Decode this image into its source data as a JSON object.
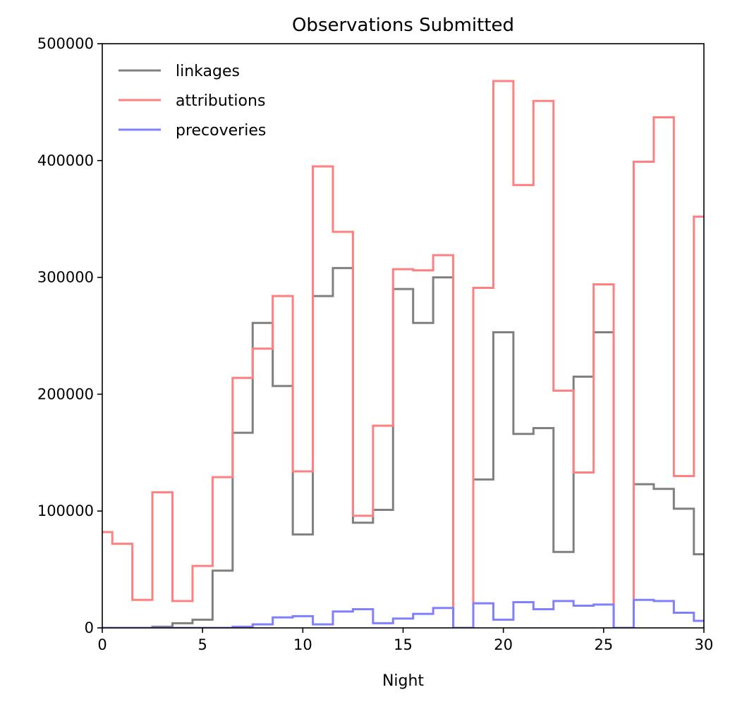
{
  "chart_data": {
    "type": "line",
    "step": "mid",
    "title": "Observations Submitted",
    "xlabel": "Night",
    "ylabel": "",
    "xlim": [
      0,
      30
    ],
    "ylim": [
      0,
      500000
    ],
    "x_ticks": [
      0,
      5,
      10,
      15,
      20,
      25,
      30
    ],
    "y_ticks": [
      0,
      100000,
      200000,
      300000,
      400000,
      500000
    ],
    "x_tick_labels": [
      "0",
      "5",
      "10",
      "15",
      "20",
      "25",
      "30"
    ],
    "y_tick_labels": [
      "0",
      "100000",
      "200000",
      "300000",
      "400000",
      "500000"
    ],
    "grid": false,
    "legend_position": "top-left",
    "x": [
      0,
      1,
      2,
      3,
      4,
      5,
      6,
      7,
      8,
      9,
      10,
      11,
      12,
      13,
      14,
      15,
      16,
      17,
      18,
      19,
      20,
      21,
      22,
      23,
      24,
      25,
      26,
      27,
      28,
      29,
      30
    ],
    "series": [
      {
        "name": "linkages",
        "color": "#808080",
        "values": [
          0,
          0,
          0,
          1000,
          4000,
          7000,
          49000,
          167000,
          261000,
          207000,
          80000,
          284000,
          308000,
          90000,
          101000,
          290000,
          261000,
          300000,
          0,
          127000,
          253000,
          166000,
          171000,
          65000,
          215000,
          253000,
          0,
          123000,
          119000,
          102000,
          63000
        ]
      },
      {
        "name": "attributions",
        "color": "#ff8080",
        "values": [
          82000,
          72000,
          24000,
          116000,
          23000,
          53000,
          129000,
          214000,
          239000,
          284000,
          134000,
          395000,
          339000,
          96000,
          173000,
          307000,
          306000,
          319000,
          0,
          291000,
          468000,
          379000,
          451000,
          203000,
          133000,
          294000,
          0,
          399000,
          437000,
          130000,
          352000
        ]
      },
      {
        "name": "precoveries",
        "color": "#8080ff",
        "values": [
          0,
          0,
          0,
          0,
          0,
          0,
          0,
          1000,
          3000,
          9000,
          10000,
          3000,
          14000,
          16000,
          4000,
          8000,
          12000,
          17000,
          0,
          21000,
          7000,
          22000,
          16000,
          23000,
          19000,
          20000,
          0,
          24000,
          23000,
          13000,
          6000
        ]
      }
    ]
  }
}
